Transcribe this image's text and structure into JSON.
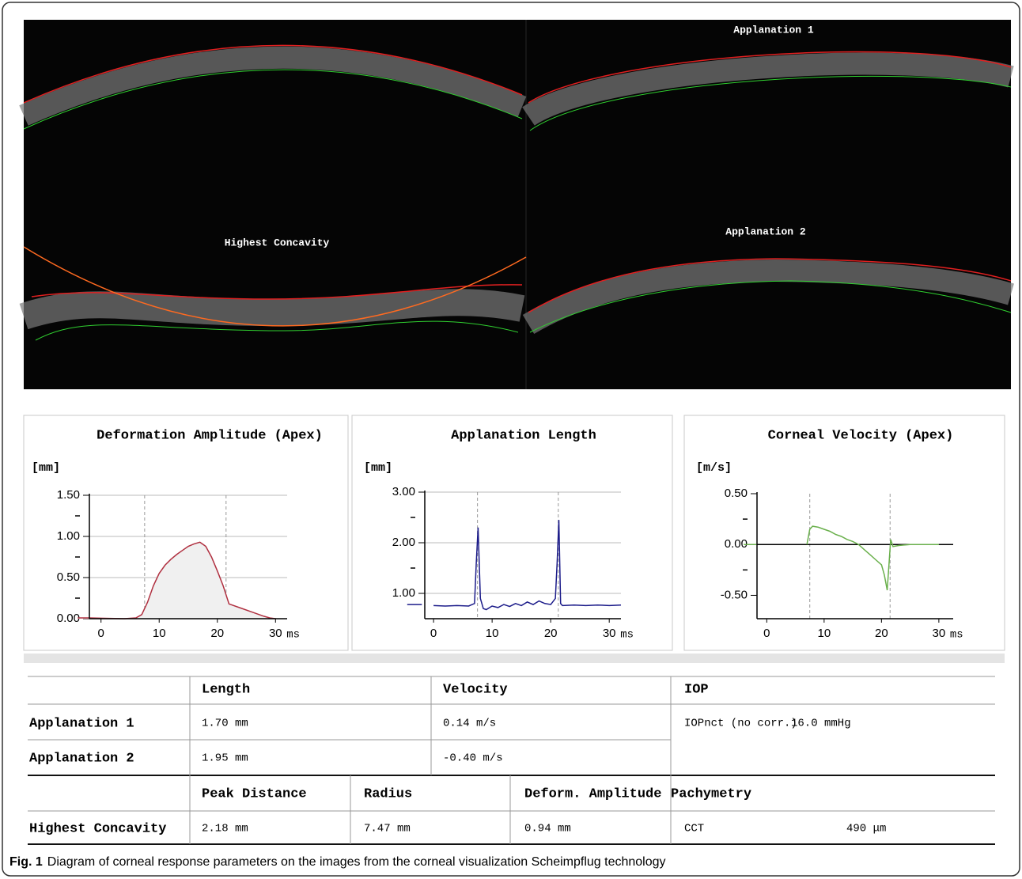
{
  "images": {
    "labels": [
      "Applanation 1",
      "Highest Concavity",
      "Applanation 2"
    ]
  },
  "chart_data": [
    {
      "type": "line",
      "title": "Deformation Amplitude (Apex)",
      "y_label": "[mm]",
      "x_label": "ms",
      "xlim": [
        -2,
        32
      ],
      "ylim": [
        0,
        1.5
      ],
      "xticks": [
        0,
        10,
        20,
        30
      ],
      "yticks": [
        {
          "value": 0,
          "label": "0.00"
        },
        {
          "value": 0.5,
          "label": "0.50"
        },
        {
          "value": 1,
          "label": "1.00"
        },
        {
          "value": 1.5,
          "label": "1.50"
        }
      ],
      "yminor": [
        0.25,
        0.75,
        1.25
      ],
      "vlines": [
        7.5,
        21.5
      ],
      "grid": true,
      "fill": "#f0f0f0",
      "color": "#b03040",
      "x": [
        -4,
        -2,
        4,
        6,
        7,
        8,
        9,
        10,
        11,
        12,
        13,
        14,
        15,
        16,
        17,
        18,
        19,
        20,
        21,
        22,
        24,
        26,
        28,
        29,
        30
      ],
      "values": [
        0.01,
        0.01,
        0,
        0.01,
        0.05,
        0.2,
        0.4,
        0.55,
        0.65,
        0.72,
        0.78,
        0.83,
        0.88,
        0.91,
        0.93,
        0.88,
        0.75,
        0.58,
        0.4,
        0.18,
        0.13,
        0.08,
        0.03,
        0.01,
        0
      ]
    },
    {
      "type": "line",
      "title": "Applanation Length",
      "y_label": "[mm]",
      "x_label": "ms",
      "xlim": [
        -1.5,
        32
      ],
      "ylim": [
        0.5,
        3
      ],
      "xticks": [
        0,
        10,
        20,
        30
      ],
      "yticks": [
        {
          "value": 1,
          "label": "1.00"
        },
        {
          "value": 2,
          "label": "2.00"
        },
        {
          "value": 3,
          "label": "3.00"
        }
      ],
      "yminor": [
        1.5,
        2.5
      ],
      "vlines": [
        7.5,
        21.3
      ],
      "grid": true,
      "color": "#1c1c8a",
      "x": [
        -4.5,
        -2,
        -1,
        0,
        2,
        4,
        6,
        7,
        7.3,
        7.6,
        8,
        8.5,
        9,
        10,
        11,
        12,
        13,
        14,
        15,
        16,
        17,
        18,
        19,
        20,
        20.8,
        21.1,
        21.4,
        21.7,
        22,
        24,
        26,
        28,
        30,
        32
      ],
      "values": [
        0.78,
        0.78,
        null,
        0.76,
        0.75,
        0.76,
        0.75,
        0.8,
        1.6,
        2.3,
        0.9,
        0.7,
        0.68,
        0.75,
        0.72,
        0.78,
        0.74,
        0.8,
        0.76,
        0.83,
        0.78,
        0.85,
        0.8,
        0.78,
        0.9,
        1.6,
        2.45,
        0.8,
        0.76,
        0.77,
        0.76,
        0.77,
        0.76,
        0.77
      ]
    },
    {
      "type": "line",
      "title": "Corneal Velocity (Apex)",
      "y_label": "[m/s]",
      "x_label": "ms",
      "xlim": [
        -1.7,
        32.5
      ],
      "ylim": [
        -0.73,
        0.5
      ],
      "xticks": [
        0,
        10,
        20,
        30
      ],
      "yticks": [
        {
          "value": -0.5,
          "label": "-0.50"
        },
        {
          "value": 0,
          "label": "0.00"
        },
        {
          "value": 0.5,
          "label": "0.50"
        }
      ],
      "yminor": [
        -0.25,
        0.25
      ],
      "vlines": [
        7.5,
        21.5
      ],
      "hlines": [
        0
      ],
      "grid": false,
      "color": "#6ab04c",
      "x": [
        -4,
        -1.7,
        -1,
        7,
        7.5,
        8,
        9,
        10,
        11,
        12,
        13,
        14,
        15,
        16,
        17,
        18,
        19,
        20,
        20.5,
        21,
        21.3,
        21.6,
        22,
        23,
        25,
        27,
        29,
        30
      ],
      "values": [
        0,
        0,
        null,
        0,
        0.15,
        0.18,
        0.17,
        0.15,
        0.13,
        0.1,
        0.08,
        0.05,
        0.03,
        0,
        -0.05,
        -0.1,
        -0.15,
        -0.2,
        -0.3,
        -0.45,
        -0.2,
        0.05,
        -0.02,
        -0.01,
        0,
        0,
        0,
        0
      ]
    }
  ],
  "table": {
    "header_1": [
      "Length",
      "Velocity",
      "IOP"
    ],
    "rows_1": [
      [
        "Applanation 1",
        "1.70 mm",
        "0.14 m/s",
        "IOPnct (no corr.)",
        "16.0 mmHg"
      ],
      [
        "Applanation 2",
        "1.95 mm",
        "-0.40 m/s"
      ]
    ],
    "header_2": [
      "Peak Distance",
      "Radius",
      "Deform. Amplitude",
      "Pachymetry"
    ],
    "rows_2": [
      [
        "Highest Concavity",
        "2.18 mm",
        "7.47 mm",
        "0.94 mm",
        "CCT",
        "490 μm"
      ]
    ]
  },
  "caption": {
    "label": "Fig. 1",
    "text": "Diagram of corneal response parameters on the images from the corneal visualization Scheimpflug technology"
  }
}
